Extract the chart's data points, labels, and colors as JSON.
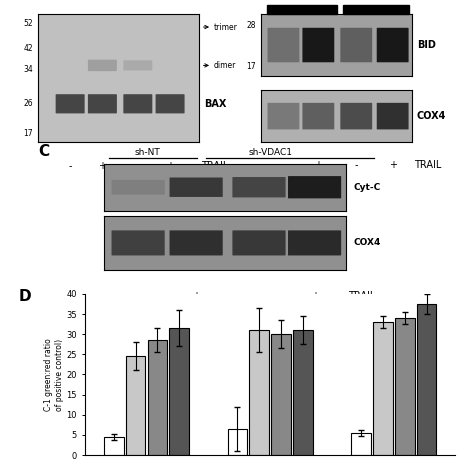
{
  "bg_color": "#ffffff",
  "panel_D": {
    "ylabel": "C-1 green:red ratio\nof positive control)",
    "ylim": [
      0,
      40
    ],
    "yticks": [
      0,
      5,
      10,
      15,
      20,
      25,
      30,
      35,
      40
    ],
    "groups": [
      {
        "bars": [
          {
            "value": 4.5,
            "err": 0.8,
            "color": "#ffffff",
            "edgecolor": "#000000"
          },
          {
            "value": 24.5,
            "err": 3.5,
            "color": "#c8c8c8",
            "edgecolor": "#000000"
          },
          {
            "value": 28.5,
            "err": 3.0,
            "color": "#888888",
            "edgecolor": "#000000"
          },
          {
            "value": 31.5,
            "err": 4.5,
            "color": "#555555",
            "edgecolor": "#000000"
          }
        ]
      },
      {
        "bars": [
          {
            "value": 6.5,
            "err": 5.5,
            "color": "#ffffff",
            "edgecolor": "#000000"
          },
          {
            "value": 31.0,
            "err": 5.5,
            "color": "#c8c8c8",
            "edgecolor": "#000000"
          },
          {
            "value": 30.0,
            "err": 3.5,
            "color": "#888888",
            "edgecolor": "#000000"
          },
          {
            "value": 31.0,
            "err": 3.5,
            "color": "#555555",
            "edgecolor": "#000000"
          }
        ]
      },
      {
        "bars": [
          {
            "value": 5.5,
            "err": 0.8,
            "color": "#ffffff",
            "edgecolor": "#000000"
          },
          {
            "value": 33.0,
            "err": 1.5,
            "color": "#c8c8c8",
            "edgecolor": "#000000"
          },
          {
            "value": 34.0,
            "err": 1.5,
            "color": "#888888",
            "edgecolor": "#000000"
          },
          {
            "value": 37.5,
            "err": 2.5,
            "color": "#555555",
            "edgecolor": "#000000"
          }
        ]
      }
    ]
  }
}
